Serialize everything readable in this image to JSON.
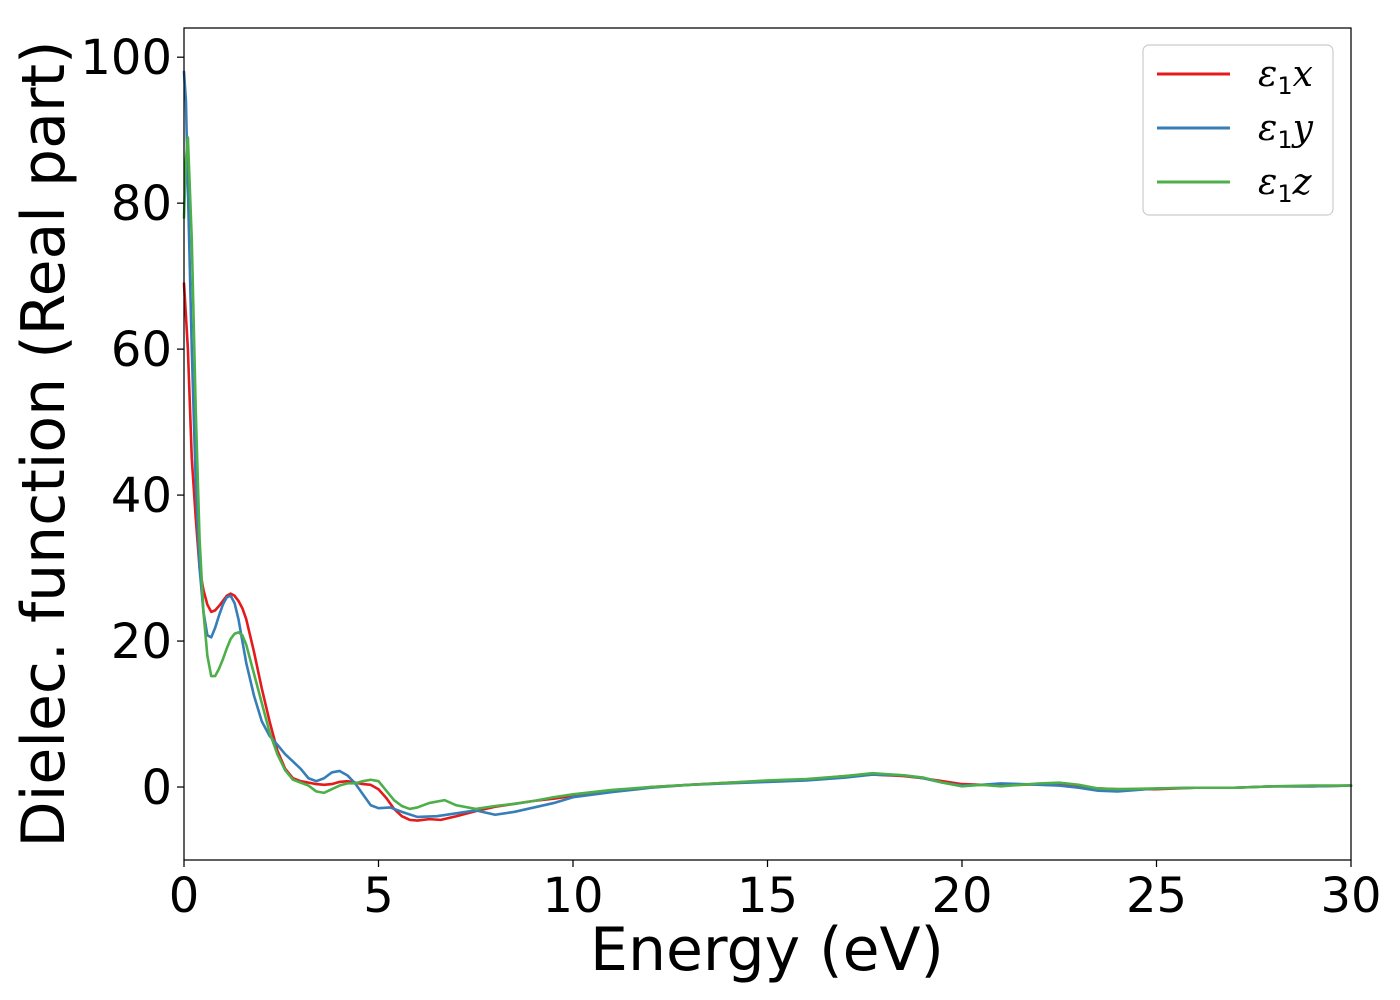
{
  "chart_data": {
    "type": "line",
    "xlabel": "Energy (eV)",
    "ylabel": "Dielec. function (Real part)",
    "xlim": [
      0,
      30
    ],
    "ylim": [
      -10,
      104
    ],
    "xticks": [
      0,
      5,
      10,
      15,
      20,
      25,
      30
    ],
    "yticks": [
      0,
      20,
      40,
      60,
      80,
      100
    ],
    "legend": "top-right",
    "grid": false,
    "series": [
      {
        "name": "ε₁x",
        "legend_main": "ε",
        "legend_sub": "1",
        "legend_var": "x",
        "color": "#e41a1c",
        "x": [
          0,
          0.1,
          0.2,
          0.3,
          0.4,
          0.5,
          0.6,
          0.7,
          0.8,
          0.9,
          1.0,
          1.1,
          1.2,
          1.3,
          1.4,
          1.5,
          1.6,
          1.8,
          2.0,
          2.2,
          2.4,
          2.6,
          2.8,
          3.0,
          3.2,
          3.4,
          3.6,
          3.8,
          4.0,
          4.2,
          4.4,
          4.6,
          4.8,
          5.0,
          5.2,
          5.4,
          5.6,
          5.8,
          6.0,
          6.3,
          6.6,
          7.0,
          7.5,
          8.0,
          8.5,
          9.0,
          9.5,
          10.0,
          11.0,
          12.0,
          13.0,
          14.0,
          15.0,
          16.0,
          17.0,
          17.7,
          18.5,
          19.0,
          19.5,
          20.0,
          20.5,
          21.0,
          21.5,
          22.0,
          22.5,
          23.0,
          23.5,
          24.0,
          25.0,
          26.0,
          27.0,
          28.0,
          29.0,
          30.0
        ],
        "y": [
          69,
          60,
          45,
          37,
          30,
          27,
          25,
          24,
          24.2,
          24.8,
          25.5,
          26.2,
          26.5,
          26.2,
          25.5,
          24.5,
          23,
          18.5,
          13.5,
          9,
          5,
          2.5,
          1.2,
          0.8,
          0.6,
          0.4,
          0.3,
          0.4,
          0.7,
          0.8,
          0.6,
          0.4,
          0.3,
          -0.3,
          -1.5,
          -3,
          -4,
          -4.5,
          -4.6,
          -4.4,
          -4.5,
          -4.0,
          -3.3,
          -2.7,
          -2.3,
          -1.9,
          -1.6,
          -1.2,
          -0.6,
          0,
          0.3,
          0.6,
          0.8,
          1.0,
          1.5,
          1.7,
          1.5,
          1.2,
          0.8,
          0.4,
          0.3,
          0.3,
          0.3,
          0.4,
          0.3,
          0.1,
          -0.2,
          -0.3,
          -0.3,
          -0.1,
          -0.1,
          0.1,
          0.1,
          0.2
        ]
      },
      {
        "name": "ε₁y",
        "legend_main": "ε",
        "legend_sub": "1",
        "legend_var": "y",
        "color": "#377eb8",
        "x": [
          0,
          0.05,
          0.1,
          0.2,
          0.3,
          0.4,
          0.5,
          0.6,
          0.7,
          0.8,
          0.9,
          1.0,
          1.1,
          1.2,
          1.3,
          1.4,
          1.5,
          1.6,
          1.8,
          2.0,
          2.2,
          2.4,
          2.6,
          2.8,
          3.0,
          3.2,
          3.4,
          3.6,
          3.8,
          4.0,
          4.2,
          4.4,
          4.6,
          4.8,
          5.0,
          5.3,
          5.6,
          6.0,
          6.5,
          7.0,
          7.5,
          8.0,
          8.5,
          9.0,
          9.5,
          10.0,
          11.0,
          12.0,
          13.0,
          14.0,
          15.0,
          16.0,
          17.0,
          17.7,
          18.5,
          19.0,
          19.5,
          20.0,
          20.5,
          21.0,
          21.5,
          22.0,
          22.5,
          23.0,
          23.5,
          24.0,
          25.0,
          26.0,
          27.0,
          28.0,
          29.0,
          30.0
        ],
        "y": [
          98,
          94,
          82,
          60,
          42,
          30,
          24,
          20.8,
          20.5,
          21.8,
          23.5,
          25,
          26,
          26.2,
          25.2,
          23,
          20,
          17,
          12.5,
          9,
          7,
          5.8,
          4.5,
          3.5,
          2.5,
          1.2,
          0.8,
          1.2,
          2.0,
          2.2,
          1.6,
          0.5,
          -1.0,
          -2.5,
          -2.9,
          -2.8,
          -3.4,
          -4.1,
          -4.0,
          -3.6,
          -3.2,
          -3.8,
          -3.4,
          -2.8,
          -2.2,
          -1.4,
          -0.7,
          -0.1,
          0.3,
          0.5,
          0.7,
          0.9,
          1.3,
          1.7,
          1.6,
          1.2,
          0.6,
          0.2,
          0.3,
          0.5,
          0.4,
          0.3,
          0.2,
          -0.1,
          -0.5,
          -0.6,
          -0.2,
          -0.1,
          -0.1,
          0.1,
          0.1,
          0.2
        ]
      },
      {
        "name": "ε₁z",
        "legend_main": "ε",
        "legend_sub": "1",
        "legend_var": "z",
        "color": "#4daf4a",
        "x": [
          0,
          0.05,
          0.1,
          0.2,
          0.3,
          0.4,
          0.5,
          0.6,
          0.7,
          0.8,
          0.9,
          1.0,
          1.1,
          1.2,
          1.3,
          1.4,
          1.5,
          1.6,
          1.8,
          2.0,
          2.2,
          2.4,
          2.6,
          2.8,
          3.0,
          3.2,
          3.4,
          3.6,
          3.8,
          4.0,
          4.2,
          4.4,
          4.6,
          4.8,
          5.0,
          5.2,
          5.4,
          5.6,
          5.8,
          6.0,
          6.3,
          6.7,
          7.0,
          7.5,
          8.0,
          8.5,
          9.0,
          9.5,
          10.0,
          11.0,
          12.0,
          13.0,
          14.0,
          15.0,
          16.0,
          17.0,
          17.7,
          18.5,
          19.0,
          19.5,
          20.0,
          20.5,
          21.0,
          21.5,
          22.0,
          22.5,
          23.0,
          23.5,
          24.0,
          25.0,
          26.0,
          27.0,
          28.0,
          29.0,
          30.0
        ],
        "y": [
          78,
          86,
          89,
          75,
          52,
          34,
          24,
          18,
          15.2,
          15.2,
          16.2,
          17.5,
          19,
          20.3,
          21,
          21.2,
          20.8,
          19.5,
          15.5,
          11.5,
          7.5,
          4.5,
          2.3,
          1.0,
          0.6,
          0.2,
          -0.6,
          -0.8,
          -0.3,
          0.2,
          0.5,
          0.5,
          0.8,
          1.0,
          0.8,
          -0.5,
          -1.8,
          -2.6,
          -3.0,
          -2.8,
          -2.2,
          -1.8,
          -2.5,
          -3.0,
          -2.6,
          -2.3,
          -1.9,
          -1.4,
          -1.0,
          -0.4,
          0,
          0.3,
          0.6,
          0.9,
          1.1,
          1.5,
          1.9,
          1.6,
          1.3,
          0.6,
          0.1,
          0.3,
          0.1,
          0.3,
          0.5,
          0.6,
          0.3,
          -0.2,
          -0.3,
          -0.2,
          -0.1,
          -0.1,
          0.1,
          0.2,
          0.2
        ]
      }
    ]
  }
}
